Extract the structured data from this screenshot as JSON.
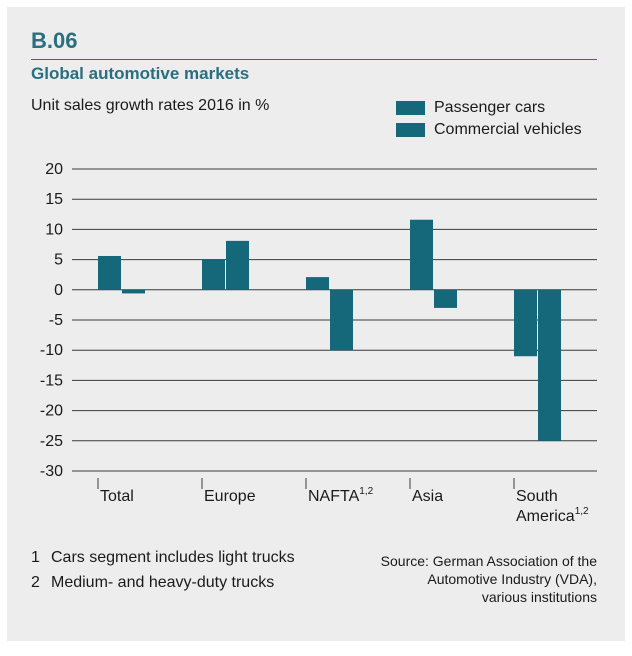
{
  "figure": {
    "number": "B.06",
    "title": "Global automotive markets",
    "subtitle": "Unit sales growth rates 2016 in %"
  },
  "colors": {
    "accent": "#2a6f80",
    "bar": "#15677a",
    "panel": "#ededed"
  },
  "legend": [
    {
      "label": "Passenger cars"
    },
    {
      "label": "Commercial vehicles"
    }
  ],
  "chart_data": {
    "type": "bar",
    "categories": [
      "Total",
      "Europe",
      "NAFTA",
      "Asia",
      "South America"
    ],
    "category_labels": [
      {
        "text": "Total"
      },
      {
        "text": "Europe"
      },
      {
        "text": "NAFTA",
        "sup": "1,2"
      },
      {
        "text": "Asia"
      },
      {
        "lines": [
          "South",
          "America"
        ],
        "sup": "1,2"
      }
    ],
    "series": [
      {
        "name": "Passenger cars",
        "values": [
          5.6,
          5.1,
          2.1,
          11.6,
          -11
        ]
      },
      {
        "name": "Commercial vehicles",
        "values": [
          -0.6,
          8.1,
          -10,
          -3,
          -25
        ]
      }
    ],
    "y_ticks": [
      "20",
      "15",
      "10",
      "5",
      "0",
      "-5",
      "-10",
      "-15",
      "-20",
      "-25",
      "-30"
    ],
    "ylim": [
      -30,
      20
    ],
    "grid": true,
    "legend_position": "top-right"
  },
  "footnotes": [
    {
      "number": "1",
      "text": "Cars segment includes light trucks"
    },
    {
      "number": "2",
      "text": "Medium- and heavy-duty trucks"
    }
  ],
  "source": [
    "Source: German Association of the",
    "Automotive Industry (VDA),",
    "various institutions"
  ]
}
